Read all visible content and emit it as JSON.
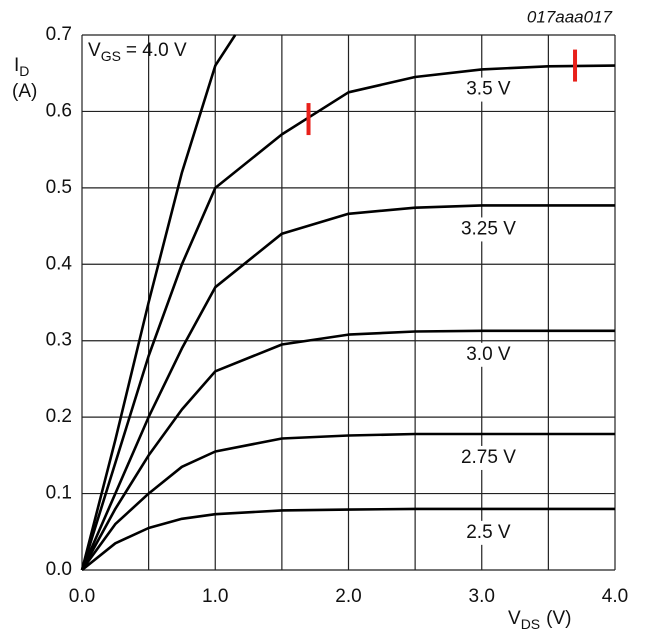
{
  "chart_data": {
    "type": "line",
    "figure_id": "017aaa017",
    "y_label": {
      "symbol": "I",
      "sub": "D",
      "unit": "(A)"
    },
    "x_label": {
      "symbol": "V",
      "sub": "DS",
      "unit": "(V)"
    },
    "gate_label": {
      "symbol": "V",
      "sub": "GS"
    },
    "xlim": [
      0,
      4
    ],
    "ylim": [
      0,
      0.7
    ],
    "xticks": [
      {
        "value": 0,
        "label": "0.0"
      },
      {
        "value": 1,
        "label": "1.0"
      },
      {
        "value": 2,
        "label": "2.0"
      },
      {
        "value": 3,
        "label": "3.0"
      },
      {
        "value": 4,
        "label": "4.0"
      }
    ],
    "xgrid_minor": [
      0.5,
      1.5,
      2.5,
      3.5
    ],
    "yticks": [
      {
        "value": 0,
        "label": "0.0"
      },
      0.1,
      0.2,
      0.3,
      0.4,
      0.5,
      0.6,
      0.7
    ],
    "grid": true,
    "series": [
      {
        "name": "= 4.0 V",
        "color": "#000000",
        "x": [
          0,
          0.25,
          0.5,
          0.75,
          1.0,
          1.15
        ],
        "values": [
          0,
          0.17,
          0.35,
          0.52,
          0.66,
          0.7
        ]
      },
      {
        "name": "3.5 V",
        "color": "#000000",
        "x": [
          0,
          0.25,
          0.5,
          0.75,
          1.0,
          1.5,
          2.0,
          2.5,
          3.0,
          3.5,
          4.0
        ],
        "values": [
          0,
          0.14,
          0.28,
          0.4,
          0.5,
          0.57,
          0.625,
          0.645,
          0.655,
          0.659,
          0.66
        ]
      },
      {
        "name": "3.25 V",
        "color": "#000000",
        "x": [
          0,
          0.25,
          0.5,
          0.75,
          1.0,
          1.5,
          2.0,
          2.5,
          3.0,
          3.5,
          4.0
        ],
        "values": [
          0,
          0.1,
          0.2,
          0.29,
          0.37,
          0.44,
          0.466,
          0.474,
          0.477,
          0.477,
          0.477
        ]
      },
      {
        "name": "3.0 V",
        "color": "#000000",
        "x": [
          0,
          0.25,
          0.5,
          0.75,
          1.0,
          1.5,
          2.0,
          2.5,
          3.0,
          3.5,
          4.0
        ],
        "values": [
          0,
          0.08,
          0.15,
          0.21,
          0.26,
          0.295,
          0.308,
          0.312,
          0.313,
          0.313,
          0.313
        ]
      },
      {
        "name": "2.75 V",
        "color": "#000000",
        "x": [
          0,
          0.25,
          0.5,
          0.75,
          1.0,
          1.5,
          2.0,
          2.5,
          3.0,
          3.5,
          4.0
        ],
        "values": [
          0,
          0.06,
          0.1,
          0.135,
          0.155,
          0.172,
          0.176,
          0.178,
          0.178,
          0.178,
          0.178
        ]
      },
      {
        "name": "2.5 V",
        "color": "#000000",
        "x": [
          0,
          0.25,
          0.5,
          0.75,
          1.0,
          1.5,
          2.0,
          2.5,
          3.0,
          3.5,
          4.0
        ],
        "values": [
          0,
          0.035,
          0.055,
          0.067,
          0.073,
          0.078,
          0.079,
          0.08,
          0.08,
          0.08,
          0.08
        ]
      }
    ],
    "markers": [
      {
        "x": 1.7,
        "y": 0.59,
        "color": "#e8201a"
      },
      {
        "x": 3.7,
        "y": 0.66,
        "color": "#e8201a"
      }
    ]
  }
}
